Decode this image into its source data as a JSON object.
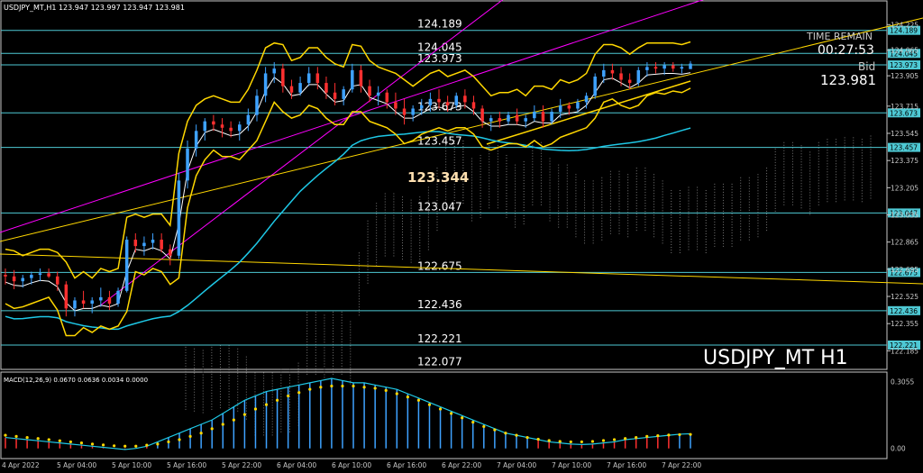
{
  "chart_data": {
    "type": "candlestick",
    "header": "USDJPY_MT,H1  123.947 123.997 123.947 123.981",
    "symbol_label": "USDJPY_MT H1",
    "timer": {
      "label": "TIME REMAIN",
      "value": "00:27:53"
    },
    "bid": {
      "label": "Bid",
      "value": "123.981"
    },
    "ylim": [
      122.08,
      124.3
    ],
    "y_ticks": [
      "124.225",
      "124.065",
      "123.905",
      "123.715",
      "123.545",
      "123.375",
      "123.205",
      "123.035",
      "122.865",
      "122.695",
      "122.525",
      "122.355",
      "122.185"
    ],
    "level_lines": [
      {
        "label": "124.189",
        "value": 124.189,
        "axis_label": "124.189"
      },
      {
        "label": "124.045",
        "value": 124.045,
        "axis_label": "124.045"
      },
      {
        "label": "123.973",
        "value": 123.973,
        "axis_label": "123.973"
      },
      {
        "label": "123.673",
        "value": 123.673,
        "axis_label": "123.673"
      },
      {
        "label": "123.457",
        "value": 123.457,
        "axis_label": "123.457"
      },
      {
        "label": "123.047",
        "value": 123.047,
        "axis_label": "123.047"
      },
      {
        "label": "122.675",
        "value": 122.675,
        "axis_label": "122.675"
      },
      {
        "label": "122.436",
        "value": 122.436,
        "axis_label": "122.436"
      },
      {
        "label": "122.221",
        "value": 122.221,
        "axis_label": "122.221"
      },
      {
        "label": "122.077",
        "value": 122.077,
        "axis_label": ""
      }
    ],
    "highlight_level": "123.344",
    "x_labels": [
      "4 Apr 2022",
      "5 Apr 04:00",
      "5 Apr 10:00",
      "5 Apr 16:00",
      "5 Apr 22:00",
      "6 Apr 04:00",
      "6 Apr 10:00",
      "6 Apr 16:00",
      "6 Apr 22:00",
      "7 Apr 04:00",
      "7 Apr 10:00",
      "7 Apr 16:00",
      "7 Apr 22:00"
    ],
    "candles": [
      [
        122.66,
        122.7,
        122.6,
        122.65
      ],
      [
        122.65,
        122.69,
        122.57,
        122.62
      ],
      [
        122.62,
        122.66,
        122.58,
        122.64
      ],
      [
        122.64,
        122.68,
        122.6,
        122.66
      ],
      [
        122.66,
        122.7,
        122.62,
        122.67
      ],
      [
        122.67,
        122.7,
        122.64,
        122.65
      ],
      [
        122.65,
        122.68,
        122.56,
        122.6
      ],
      [
        122.6,
        122.62,
        122.4,
        122.45
      ],
      [
        122.45,
        122.52,
        122.4,
        122.5
      ],
      [
        122.5,
        122.56,
        122.45,
        122.48
      ],
      [
        122.48,
        122.52,
        122.42,
        122.5
      ],
      [
        122.5,
        122.58,
        122.46,
        122.52
      ],
      [
        122.52,
        122.56,
        122.44,
        122.48
      ],
      [
        122.48,
        122.58,
        122.46,
        122.56
      ],
      [
        122.56,
        122.9,
        122.55,
        122.88
      ],
      [
        122.88,
        122.92,
        122.8,
        122.84
      ],
      [
        122.84,
        122.9,
        122.78,
        122.86
      ],
      [
        122.86,
        122.92,
        122.82,
        122.88
      ],
      [
        122.88,
        122.92,
        122.8,
        122.82
      ],
      [
        122.82,
        122.85,
        122.72,
        122.78
      ],
      [
        122.78,
        123.3,
        122.76,
        123.25
      ],
      [
        123.25,
        123.5,
        123.2,
        123.45
      ],
      [
        123.45,
        123.6,
        123.4,
        123.56
      ],
      [
        123.56,
        123.64,
        123.5,
        123.62
      ],
      [
        123.62,
        123.66,
        123.56,
        123.6
      ],
      [
        123.6,
        123.64,
        123.52,
        123.58
      ],
      [
        123.58,
        123.62,
        123.52,
        123.56
      ],
      [
        123.56,
        123.62,
        123.5,
        123.6
      ],
      [
        123.6,
        123.7,
        123.56,
        123.66
      ],
      [
        123.66,
        123.82,
        123.62,
        123.78
      ],
      [
        123.78,
        123.96,
        123.74,
        123.92
      ],
      [
        123.92,
        123.99,
        123.86,
        123.95
      ],
      [
        123.95,
        123.98,
        123.8,
        123.84
      ],
      [
        123.84,
        123.88,
        123.76,
        123.8
      ],
      [
        123.8,
        123.9,
        123.78,
        123.86
      ],
      [
        123.86,
        123.96,
        123.84,
        123.92
      ],
      [
        123.92,
        123.96,
        123.82,
        123.86
      ],
      [
        123.86,
        123.9,
        123.76,
        123.8
      ],
      [
        123.8,
        123.86,
        123.72,
        123.76
      ],
      [
        123.76,
        123.84,
        123.72,
        123.82
      ],
      [
        123.82,
        123.98,
        123.8,
        123.94
      ],
      [
        123.94,
        123.97,
        123.8,
        123.84
      ],
      [
        123.84,
        123.88,
        123.74,
        123.78
      ],
      [
        123.78,
        123.84,
        123.72,
        123.8
      ],
      [
        123.8,
        123.82,
        123.7,
        123.74
      ],
      [
        123.74,
        123.8,
        123.66,
        123.7
      ],
      [
        123.7,
        123.76,
        123.6,
        123.66
      ],
      [
        123.66,
        123.72,
        123.62,
        123.7
      ],
      [
        123.7,
        123.76,
        123.66,
        123.72
      ],
      [
        123.72,
        123.8,
        123.68,
        123.76
      ],
      [
        123.76,
        123.82,
        123.7,
        123.74
      ],
      [
        123.74,
        123.78,
        123.68,
        123.72
      ],
      [
        123.72,
        123.8,
        123.7,
        123.78
      ],
      [
        123.78,
        123.82,
        123.7,
        123.74
      ],
      [
        123.74,
        123.78,
        123.66,
        123.7
      ],
      [
        123.7,
        123.72,
        123.58,
        123.62
      ],
      [
        123.62,
        123.66,
        123.56,
        123.64
      ],
      [
        123.64,
        123.68,
        123.58,
        123.62
      ],
      [
        123.62,
        123.68,
        123.6,
        123.66
      ],
      [
        123.66,
        123.7,
        123.6,
        123.62
      ],
      [
        123.62,
        123.66,
        123.58,
        123.64
      ],
      [
        123.64,
        123.72,
        123.62,
        123.68
      ],
      [
        123.68,
        123.72,
        123.58,
        123.62
      ],
      [
        123.62,
        123.7,
        123.6,
        123.68
      ],
      [
        123.68,
        123.76,
        123.64,
        123.72
      ],
      [
        123.72,
        123.74,
        123.66,
        123.7
      ],
      [
        123.7,
        123.76,
        123.68,
        123.74
      ],
      [
        123.74,
        123.8,
        123.7,
        123.78
      ],
      [
        123.78,
        123.92,
        123.76,
        123.9
      ],
      [
        123.9,
        123.98,
        123.86,
        123.94
      ],
      [
        123.94,
        123.98,
        123.88,
        123.92
      ],
      [
        123.92,
        123.96,
        123.84,
        123.88
      ],
      [
        123.88,
        123.92,
        123.82,
        123.86
      ],
      [
        123.86,
        123.96,
        123.84,
        123.94
      ],
      [
        123.94,
        123.99,
        123.9,
        123.96
      ],
      [
        123.96,
        123.99,
        123.92,
        123.95
      ],
      [
        123.95,
        123.99,
        123.91,
        123.97
      ],
      [
        123.97,
        123.99,
        123.93,
        123.95
      ],
      [
        123.95,
        123.98,
        123.92,
        123.96
      ],
      [
        123.947,
        123.997,
        123.947,
        123.981
      ]
    ],
    "macd": {
      "label": "MACD(12,26,9) 0.0670 0.0636 0.0034 0.0000",
      "ylim": [
        -0.03,
        0.32
      ],
      "y_ticks": [
        "0.3055",
        "0.00"
      ],
      "macd_line": [
        0.05,
        0.045,
        0.04,
        0.035,
        0.03,
        0.025,
        0.02,
        0.015,
        0.01,
        0.005,
        0.0,
        -0.005,
        0.0,
        0.01,
        0.03,
        0.05,
        0.07,
        0.09,
        0.11,
        0.13,
        0.16,
        0.19,
        0.22,
        0.24,
        0.26,
        0.27,
        0.28,
        0.29,
        0.3,
        0.31,
        0.32,
        0.31,
        0.3,
        0.3,
        0.29,
        0.28,
        0.27,
        0.25,
        0.23,
        0.21,
        0.19,
        0.17,
        0.15,
        0.13,
        0.11,
        0.09,
        0.07,
        0.06,
        0.05,
        0.04,
        0.03,
        0.025,
        0.02,
        0.018,
        0.02,
        0.025,
        0.03,
        0.04,
        0.045,
        0.05,
        0.055,
        0.06,
        0.065,
        0.067
      ],
      "signal_line": [
        0.06,
        0.055,
        0.05,
        0.045,
        0.04,
        0.035,
        0.03,
        0.025,
        0.02,
        0.016,
        0.012,
        0.01,
        0.01,
        0.015,
        0.02,
        0.03,
        0.04,
        0.055,
        0.07,
        0.09,
        0.11,
        0.13,
        0.155,
        0.18,
        0.2,
        0.22,
        0.24,
        0.255,
        0.27,
        0.28,
        0.285,
        0.285,
        0.285,
        0.28,
        0.275,
        0.265,
        0.25,
        0.235,
        0.22,
        0.2,
        0.18,
        0.16,
        0.14,
        0.12,
        0.1,
        0.085,
        0.07,
        0.06,
        0.05,
        0.042,
        0.036,
        0.032,
        0.03,
        0.03,
        0.032,
        0.036,
        0.04,
        0.045,
        0.05,
        0.055,
        0.058,
        0.061,
        0.063,
        0.064
      ]
    }
  }
}
